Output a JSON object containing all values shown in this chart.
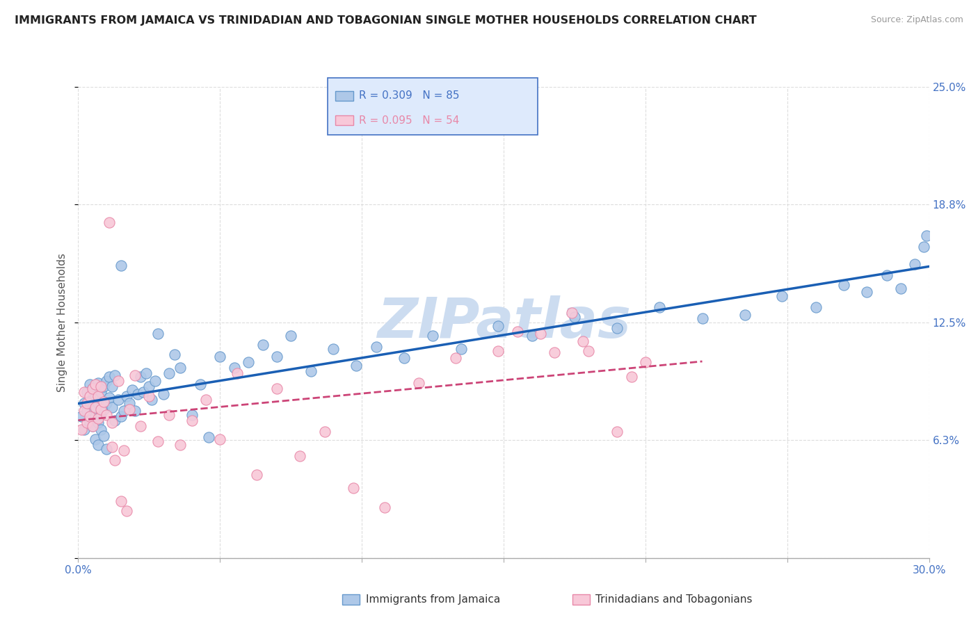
{
  "title": "IMMIGRANTS FROM JAMAICA VS TRINIDADIAN AND TOBAGONIAN SINGLE MOTHER HOUSEHOLDS CORRELATION CHART",
  "source": "Source: ZipAtlas.com",
  "ylabel": "Single Mother Households",
  "xmin": 0.0,
  "xmax": 0.3,
  "ymin": 0.0,
  "ymax": 0.25,
  "yticks": [
    0.0,
    0.0625,
    0.125,
    0.1875,
    0.25
  ],
  "ytick_labels": [
    "",
    "6.3%",
    "12.5%",
    "18.8%",
    "25.0%"
  ],
  "xticks": [
    0.0,
    0.05,
    0.1,
    0.15,
    0.2,
    0.25,
    0.3
  ],
  "xtick_labels": [
    "0.0%",
    "",
    "",
    "",
    "",
    "",
    "30.0%"
  ],
  "series1_name": "Immigrants from Jamaica",
  "series1_R": 0.309,
  "series1_N": 85,
  "series1_color": "#aec8e8",
  "series1_edge": "#6699cc",
  "series2_name": "Trinidadians and Tobagonians",
  "series2_R": 0.095,
  "series2_N": 54,
  "series2_color": "#f8c8d8",
  "series2_edge": "#e888a8",
  "watermark": "ZIPatlas",
  "watermark_color": "#ccdcf0",
  "background_color": "#ffffff",
  "grid_color": "#dddddd",
  "trendline1_color": "#1a5fb4",
  "trendline2_color": "#cc4477",
  "legend_box_color": "#deeafc",
  "legend_border_color": "#4472c4",
  "text_color": "#4472c4",
  "title_color": "#222222",
  "series1_x": [
    0.001,
    0.002,
    0.002,
    0.003,
    0.003,
    0.004,
    0.004,
    0.004,
    0.005,
    0.005,
    0.005,
    0.006,
    0.006,
    0.007,
    0.007,
    0.007,
    0.008,
    0.008,
    0.009,
    0.009,
    0.01,
    0.01,
    0.011,
    0.011,
    0.012,
    0.012,
    0.013,
    0.013,
    0.014,
    0.015,
    0.015,
    0.016,
    0.017,
    0.018,
    0.019,
    0.02,
    0.021,
    0.022,
    0.023,
    0.024,
    0.025,
    0.026,
    0.027,
    0.028,
    0.03,
    0.032,
    0.034,
    0.036,
    0.04,
    0.043,
    0.046,
    0.05,
    0.055,
    0.06,
    0.065,
    0.07,
    0.075,
    0.082,
    0.09,
    0.098,
    0.105,
    0.115,
    0.125,
    0.135,
    0.148,
    0.16,
    0.175,
    0.19,
    0.205,
    0.22,
    0.235,
    0.248,
    0.26,
    0.27,
    0.278,
    0.285,
    0.29,
    0.295,
    0.298,
    0.299,
    0.006,
    0.007,
    0.008,
    0.009,
    0.01
  ],
  "series1_y": [
    0.075,
    0.082,
    0.068,
    0.078,
    0.088,
    0.072,
    0.083,
    0.092,
    0.07,
    0.08,
    0.09,
    0.075,
    0.086,
    0.072,
    0.082,
    0.093,
    0.076,
    0.088,
    0.079,
    0.091,
    0.082,
    0.094,
    0.085,
    0.096,
    0.08,
    0.091,
    0.073,
    0.097,
    0.084,
    0.075,
    0.155,
    0.078,
    0.086,
    0.082,
    0.089,
    0.078,
    0.087,
    0.096,
    0.088,
    0.098,
    0.091,
    0.084,
    0.094,
    0.119,
    0.087,
    0.098,
    0.108,
    0.101,
    0.076,
    0.092,
    0.064,
    0.107,
    0.101,
    0.104,
    0.113,
    0.107,
    0.118,
    0.099,
    0.111,
    0.102,
    0.112,
    0.106,
    0.118,
    0.111,
    0.123,
    0.118,
    0.128,
    0.122,
    0.133,
    0.127,
    0.129,
    0.139,
    0.133,
    0.145,
    0.141,
    0.15,
    0.143,
    0.156,
    0.165,
    0.171,
    0.063,
    0.06,
    0.068,
    0.065,
    0.058
  ],
  "series2_x": [
    0.001,
    0.002,
    0.002,
    0.003,
    0.003,
    0.004,
    0.004,
    0.005,
    0.005,
    0.006,
    0.006,
    0.007,
    0.007,
    0.008,
    0.008,
    0.009,
    0.01,
    0.011,
    0.012,
    0.014,
    0.016,
    0.018,
    0.02,
    0.022,
    0.025,
    0.028,
    0.032,
    0.036,
    0.04,
    0.045,
    0.05,
    0.056,
    0.063,
    0.07,
    0.078,
    0.087,
    0.097,
    0.108,
    0.12,
    0.133,
    0.148,
    0.163,
    0.178,
    0.19,
    0.2,
    0.155,
    0.168,
    0.174,
    0.18,
    0.195,
    0.012,
    0.013,
    0.015,
    0.017
  ],
  "series2_y": [
    0.068,
    0.078,
    0.088,
    0.072,
    0.082,
    0.075,
    0.086,
    0.07,
    0.09,
    0.08,
    0.092,
    0.074,
    0.086,
    0.079,
    0.091,
    0.083,
    0.076,
    0.178,
    0.072,
    0.094,
    0.057,
    0.079,
    0.097,
    0.07,
    0.086,
    0.062,
    0.076,
    0.06,
    0.073,
    0.084,
    0.063,
    0.098,
    0.044,
    0.09,
    0.054,
    0.067,
    0.037,
    0.027,
    0.093,
    0.106,
    0.11,
    0.119,
    0.115,
    0.067,
    0.104,
    0.12,
    0.109,
    0.13,
    0.11,
    0.096,
    0.059,
    0.052,
    0.03,
    0.025
  ]
}
